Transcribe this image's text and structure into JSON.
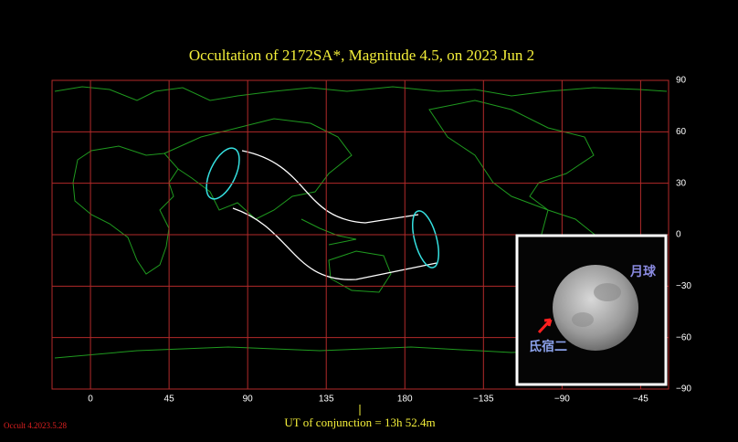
{
  "chart_data": {
    "type": "map",
    "title": "Occultation  of  2172SA*,      Magnitude 4.5,   on  2023  Jun  2",
    "annotation": "UT of conjunction = 13h 52.4m",
    "credit": "Occult 4.2023.5.28",
    "inset_labels": [
      "月球",
      "氐宿二"
    ],
    "xlim": [
      -22,
      331
    ],
    "ylim": [
      -90,
      90
    ],
    "xticks": [
      0,
      45,
      90,
      135,
      180,
      {
        "value": 225,
        "label": "−135"
      },
      {
        "value": 270,
        "label": "−90"
      },
      {
        "value": 315,
        "label": "−45"
      }
    ],
    "yticks": [
      90,
      60,
      30,
      0,
      {
        "value": -30,
        "label": "−30"
      },
      {
        "value": -60,
        "label": "−60"
      },
      {
        "value": -90,
        "label": "−90"
      }
    ],
    "grid": true,
    "grid_color": "#b22a2a"
  }
}
